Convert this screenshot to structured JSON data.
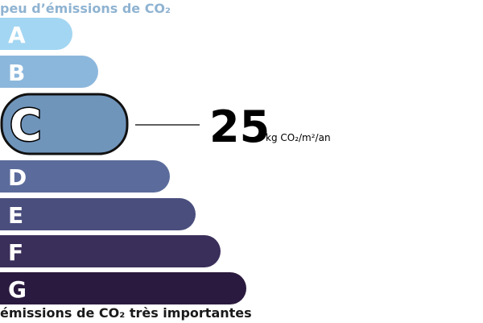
{
  "header": "peu d’émissions de CO₂",
  "classes": [
    {
      "letter": "A",
      "color": "#a3d6f2"
    },
    {
      "letter": "B",
      "color": "#8cb7dc"
    },
    {
      "letter": "C",
      "color": "#7095bb",
      "highlighted": true
    },
    {
      "letter": "D",
      "color": "#5b6c9c"
    },
    {
      "letter": "E",
      "color": "#4a4e7d"
    },
    {
      "letter": "F",
      "color": "#3a2e5a"
    },
    {
      "letter": "G",
      "color": "#2b1a3f"
    }
  ],
  "value": 25,
  "unit": "kg CO₂/m²/an",
  "footer": "émissions de CO₂ très importantes"
}
